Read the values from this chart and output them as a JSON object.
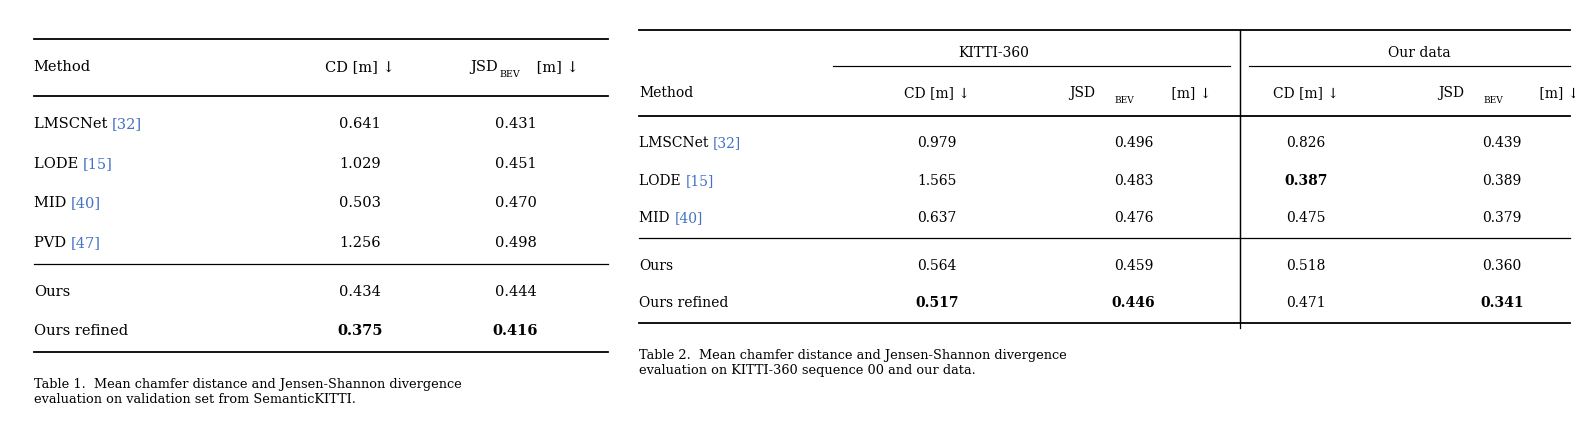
{
  "bg_color": "#ffffff",
  "link_color": "#4472c4",
  "table1": {
    "title": "Table 1.  Mean chamfer distance and Jensen-Shannon divergence\nevaluation on validation set from SemanticKITTI.",
    "rows_baseline": [
      [
        "LMSCNet [32]",
        "0.641",
        "0.431"
      ],
      [
        "LODE [15]",
        "1.029",
        "0.451"
      ],
      [
        "MID [40]",
        "0.503",
        "0.470"
      ],
      [
        "PVD [47]",
        "1.256",
        "0.498"
      ]
    ],
    "rows_baseline_refs": [
      "32",
      "15",
      "40",
      "47"
    ],
    "rows_baseline_names": [
      "LMSCNet",
      "LODE",
      "MID",
      "PVD"
    ],
    "rows_ours": [
      [
        "Ours",
        "0.434",
        "0.444",
        false,
        false
      ],
      [
        "Ours refined",
        "0.375",
        "0.416",
        true,
        true
      ]
    ]
  },
  "table2": {
    "title": "Table 2.  Mean chamfer distance and Jensen-Shannon divergence\nevaluation on KITTI-360 sequence 00 and our data.",
    "rows_baseline_names": [
      "LMSCNet",
      "LODE",
      "MID"
    ],
    "rows_baseline_refs": [
      "32",
      "15",
      "40"
    ],
    "rows_baseline": [
      [
        "0.979",
        "0.496",
        "0.826",
        "0.439",
        false,
        false,
        false,
        false
      ],
      [
        "1.565",
        "0.483",
        "0.387",
        "0.389",
        false,
        false,
        true,
        false
      ],
      [
        "0.637",
        "0.476",
        "0.475",
        "0.379",
        false,
        false,
        false,
        false
      ]
    ],
    "rows_ours": [
      [
        "Ours",
        "0.564",
        "0.459",
        "0.518",
        "0.360",
        false,
        false,
        false,
        false
      ],
      [
        "Ours refined",
        "0.517",
        "0.446",
        "0.471",
        "0.341",
        true,
        true,
        false,
        true
      ]
    ]
  }
}
